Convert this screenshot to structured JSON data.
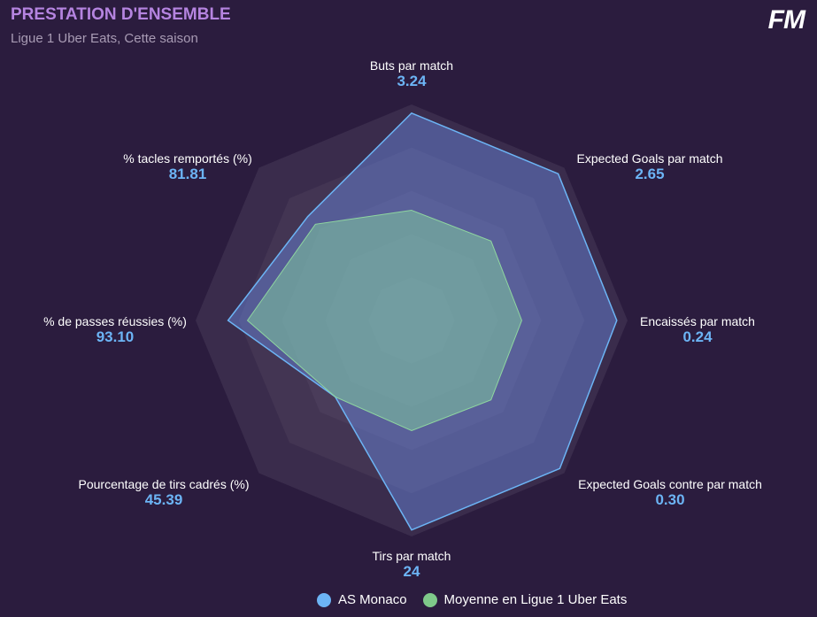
{
  "header": {
    "title": "PRESTATION D'ENSEMBLE",
    "subtitle": "Ligue 1 Uber Eats, Cette saison",
    "logo": "FM"
  },
  "chart_data": {
    "type": "radar",
    "title": "PRESTATION D'ENSEMBLE",
    "axes": [
      {
        "name": "Buts par match",
        "value": "3.24"
      },
      {
        "name": "Expected Goals par match",
        "value": "2.65"
      },
      {
        "name": "Encaissés par match",
        "value": "0.24"
      },
      {
        "name": "Expected Goals contre par match",
        "value": "0.30"
      },
      {
        "name": "Tirs par match",
        "value": "24"
      },
      {
        "name": "Pourcentage de tirs cadrés (%)",
        "value": "45.39"
      },
      {
        "name": "% de passes réussies (%)",
        "value": "93.10"
      },
      {
        "name": "% tacles remportés (%)",
        "value": "81.81"
      }
    ],
    "series": [
      {
        "name": "AS Monaco",
        "color": "#6cb4f5",
        "normalized": [
          0.96,
          0.96,
          0.95,
          0.97,
          0.97,
          0.5,
          0.85,
          0.68
        ]
      },
      {
        "name": "Moyenne en Ligue 1 Uber Eats",
        "color": "#7fc98a",
        "normalized": [
          0.51,
          0.52,
          0.51,
          0.52,
          0.51,
          0.5,
          0.76,
          0.63
        ]
      }
    ],
    "rings": 5,
    "legend": "bottom"
  }
}
